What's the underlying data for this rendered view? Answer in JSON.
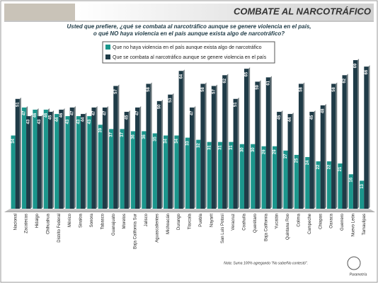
{
  "chart_data": {
    "type": "bar",
    "title": "COMBATE AL NARCOTRÁFICO",
    "subtitle": [
      "Usted que prefiere, ¿qué se combata al narcotráfico aunque se genere violencia en el país,",
      "o qué NO haya violencia en el país aunque exista algo de narcotráfico?"
    ],
    "categories": [
      "Nacional",
      "Zacatecas",
      "Hidalgo",
      "Chihuahua",
      "Distrito Federal",
      "México",
      "Sinaloa",
      "Sonora",
      "Tabasco",
      "Guanajuato",
      "Morelos",
      "Baja California Sur",
      "Jalisco",
      "Aguascalientes",
      "Michoacán",
      "Durango",
      "Tlaxcala",
      "Puebla",
      "Nayarit",
      "San Luis Potosí",
      "Veracruz",
      "Coahuila",
      "Querétaro",
      "Baja California",
      "Yucatán",
      "Quintana Roo",
      "Colima",
      "Campeche",
      "Chiapas",
      "Oaxaca",
      "Guerrero",
      "Nuevo León",
      "Tamaulipas"
    ],
    "series": [
      {
        "name": "Que no haya violencia en el país aunque exista algo de narcotráfico",
        "color": "#1b968c",
        "values": [
          34,
          47,
          46,
          46,
          44,
          43,
          43,
          43,
          39,
          37,
          37,
          36,
          36,
          35,
          34,
          34,
          33,
          32,
          31,
          31,
          31,
          30,
          30,
          29,
          29,
          27,
          25,
          24,
          22,
          22,
          21,
          16,
          13
        ]
      },
      {
        "name": "Que se combata al narcotráfico aunque se genere violencia en el país",
        "color": "#1f3b47",
        "values": [
          51,
          43,
          43,
          45,
          46,
          47,
          44,
          47,
          47,
          57,
          45,
          47,
          58,
          50,
          53,
          64,
          47,
          58,
          57,
          62,
          51,
          65,
          59,
          61,
          45,
          44,
          58,
          45,
          48,
          58,
          62,
          69,
          66
        ]
      }
    ],
    "note": "Nota: Suma 100% agregando \"No sabe/No contestó\".",
    "logo": "Parametría"
  }
}
